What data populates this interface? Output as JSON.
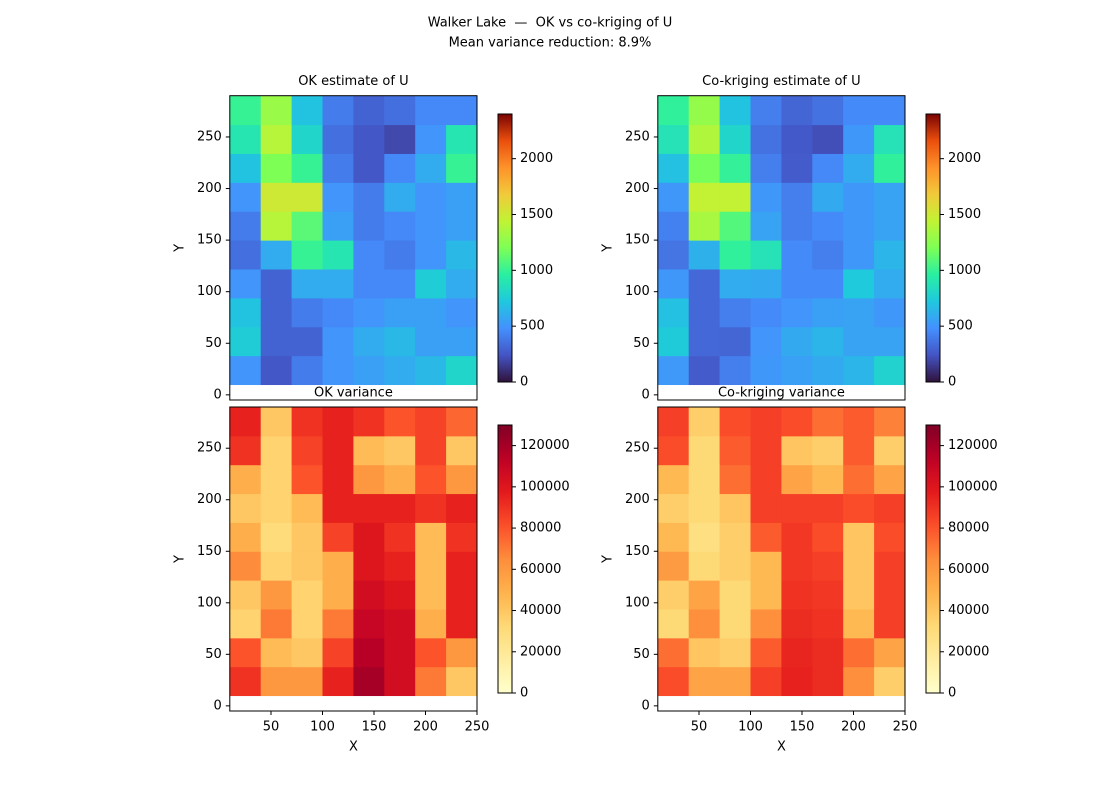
{
  "suptitle": [
    "Walker Lake  —  OK vs co-kriging of U",
    "Mean variance reduction: 8.9%"
  ],
  "chart_data": [
    {
      "type": "heatmap",
      "title": "OK estimate of U",
      "ylabel": "Y",
      "xbins": [
        10,
        40,
        70,
        100,
        130,
        160,
        190,
        220,
        250
      ],
      "ybins": [
        10,
        38,
        66,
        94,
        122,
        150,
        178,
        206,
        234,
        262,
        290
      ],
      "z": [
        [
          500,
          250,
          400,
          500,
          550,
          600,
          650,
          800
        ],
        [
          750,
          300,
          300,
          500,
          600,
          650,
          550,
          550
        ],
        [
          700,
          300,
          400,
          450,
          500,
          550,
          550,
          500
        ],
        [
          500,
          300,
          600,
          600,
          450,
          450,
          750,
          600
        ],
        [
          350,
          600,
          1000,
          900,
          450,
          400,
          500,
          650
        ],
        [
          400,
          1400,
          1100,
          550,
          400,
          450,
          500,
          550
        ],
        [
          500,
          1500,
          1500,
          500,
          400,
          600,
          500,
          550
        ],
        [
          700,
          1200,
          1000,
          400,
          250,
          450,
          600,
          1000
        ],
        [
          900,
          1400,
          800,
          350,
          250,
          200,
          500,
          900
        ],
        [
          1000,
          1300,
          700,
          400,
          300,
          350,
          450,
          450
        ]
      ],
      "xlim": [
        10,
        250
      ],
      "ylim": [
        -5,
        290
      ],
      "yticks": [
        0,
        50,
        100,
        150,
        200,
        250
      ],
      "colormap": "turbo",
      "clim": [
        0,
        2400
      ],
      "cticks": [
        0,
        500,
        1000,
        1500,
        2000
      ]
    },
    {
      "type": "heatmap",
      "title": "Co-kriging estimate of U",
      "ylabel": "Y",
      "xbins": [
        10,
        40,
        70,
        100,
        130,
        160,
        190,
        220,
        250
      ],
      "ybins": [
        10,
        38,
        66,
        94,
        122,
        150,
        178,
        206,
        234,
        262,
        290
      ],
      "z": [
        [
          520,
          270,
          410,
          510,
          550,
          590,
          640,
          780
        ],
        [
          740,
          320,
          310,
          500,
          590,
          640,
          560,
          560
        ],
        [
          690,
          320,
          410,
          460,
          500,
          550,
          560,
          510
        ],
        [
          510,
          320,
          600,
          590,
          460,
          460,
          730,
          600
        ],
        [
          370,
          620,
          980,
          880,
          460,
          410,
          510,
          640
        ],
        [
          420,
          1350,
          1080,
          560,
          410,
          460,
          510,
          560
        ],
        [
          510,
          1450,
          1450,
          510,
          410,
          590,
          510,
          560
        ],
        [
          690,
          1180,
          990,
          410,
          270,
          450,
          600,
          980
        ],
        [
          880,
          1380,
          800,
          360,
          260,
          220,
          510,
          880
        ],
        [
          980,
          1280,
          700,
          410,
          310,
          360,
          460,
          460
        ]
      ],
      "xlim": [
        10,
        250
      ],
      "ylim": [
        -5,
        290
      ],
      "yticks": [
        0,
        50,
        100,
        150,
        200,
        250
      ],
      "colormap": "turbo",
      "clim": [
        0,
        2400
      ],
      "cticks": [
        0,
        500,
        1000,
        1500,
        2000
      ]
    },
    {
      "type": "heatmap",
      "title": "OK variance",
      "xlabel": "X",
      "ylabel": "Y",
      "xbins": [
        10,
        40,
        70,
        100,
        130,
        160,
        190,
        220,
        250
      ],
      "ybins": [
        10,
        38,
        66,
        94,
        122,
        150,
        178,
        206,
        234,
        262,
        290
      ],
      "z": [
        [
          90000,
          60000,
          60000,
          95000,
          120000,
          105000,
          70000,
          40000
        ],
        [
          80000,
          45000,
          40000,
          85000,
          115000,
          105000,
          80000,
          60000
        ],
        [
          35000,
          70000,
          35000,
          70000,
          110000,
          105000,
          50000,
          95000
        ],
        [
          40000,
          60000,
          35000,
          50000,
          105000,
          100000,
          45000,
          95000
        ],
        [
          65000,
          35000,
          40000,
          50000,
          100000,
          95000,
          45000,
          95000
        ],
        [
          50000,
          30000,
          40000,
          85000,
          100000,
          90000,
          45000,
          90000
        ],
        [
          40000,
          35000,
          45000,
          95000,
          95000,
          95000,
          90000,
          95000
        ],
        [
          50000,
          35000,
          80000,
          95000,
          60000,
          50000,
          80000,
          60000
        ],
        [
          90000,
          35000,
          85000,
          95000,
          45000,
          40000,
          85000,
          40000
        ],
        [
          95000,
          40000,
          90000,
          95000,
          90000,
          80000,
          85000,
          75000
        ]
      ],
      "xlim": [
        10,
        250
      ],
      "ylim": [
        -5,
        290
      ],
      "xticks": [
        50,
        100,
        150,
        200,
        250
      ],
      "yticks": [
        0,
        50,
        100,
        150,
        200,
        250
      ],
      "colormap": "YlOrRd",
      "clim": [
        0,
        130000
      ],
      "cticks": [
        0,
        20000,
        40000,
        60000,
        80000,
        100000,
        120000
      ]
    },
    {
      "type": "heatmap",
      "title": "Co-kriging variance",
      "xlabel": "X",
      "ylabel": "Y",
      "xbins": [
        10,
        40,
        70,
        100,
        130,
        160,
        190,
        220,
        250
      ],
      "ybins": [
        10,
        38,
        66,
        94,
        122,
        150,
        178,
        206,
        234,
        262,
        290
      ],
      "z": [
        [
          82000,
          55000,
          55000,
          86000,
          95000,
          92000,
          64000,
          37000
        ],
        [
          73000,
          41000,
          37000,
          78000,
          94000,
          92000,
          73000,
          55000
        ],
        [
          32000,
          64000,
          32000,
          64000,
          92000,
          90000,
          46000,
          86000
        ],
        [
          37000,
          55000,
          32000,
          46000,
          90000,
          88000,
          41000,
          86000
        ],
        [
          59000,
          32000,
          37000,
          46000,
          88000,
          86000,
          41000,
          86000
        ],
        [
          46000,
          28000,
          37000,
          78000,
          88000,
          82000,
          41000,
          82000
        ],
        [
          37000,
          32000,
          41000,
          86000,
          86000,
          86000,
          82000,
          86000
        ],
        [
          46000,
          32000,
          73000,
          86000,
          55000,
          46000,
          73000,
          55000
        ],
        [
          82000,
          32000,
          78000,
          86000,
          41000,
          37000,
          78000,
          37000
        ],
        [
          86000,
          37000,
          82000,
          86000,
          82000,
          73000,
          78000,
          68000
        ]
      ],
      "xlim": [
        10,
        250
      ],
      "ylim": [
        -5,
        290
      ],
      "xticks": [
        50,
        100,
        150,
        200,
        250
      ],
      "yticks": [
        0,
        50,
        100,
        150,
        200,
        250
      ],
      "colormap": "YlOrRd",
      "clim": [
        0,
        130000
      ],
      "cticks": [
        0,
        20000,
        40000,
        60000,
        80000,
        100000,
        120000
      ]
    }
  ]
}
